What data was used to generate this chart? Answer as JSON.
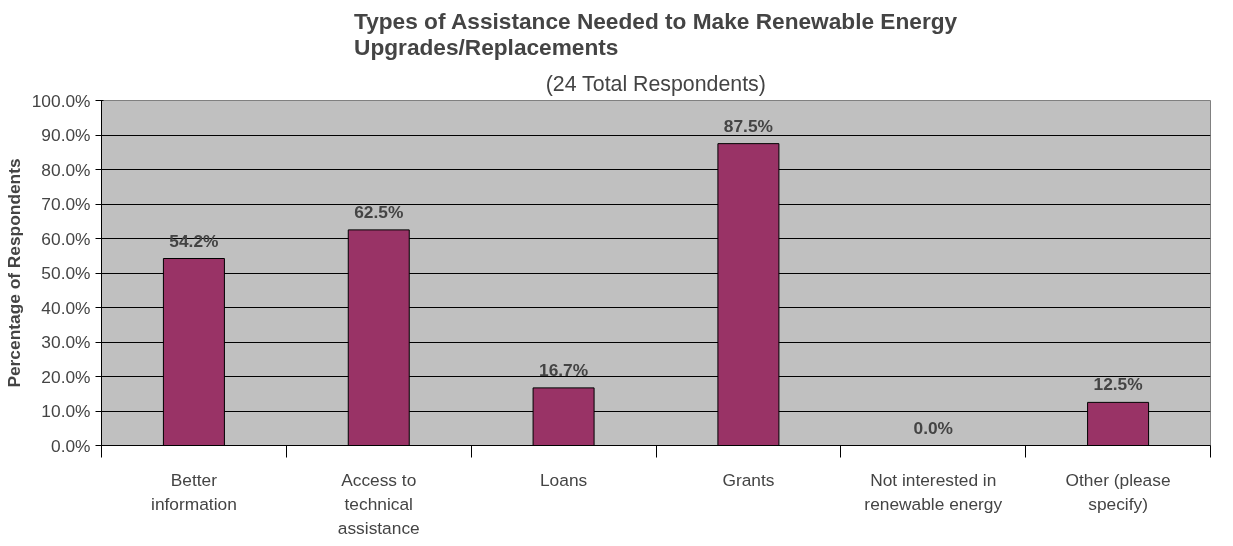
{
  "chart_data": {
    "type": "bar",
    "title": "Types of Assistance Needed to Make Renewable Energy Upgrades/Replacements",
    "subtitle": "(24 Total Respondents)",
    "ylabel": "Percentage of Respondents",
    "categories": [
      "Better information",
      "Access to technical assistance",
      "Loans",
      "Grants",
      "Not interested in renewable energy",
      "Other (please specify)"
    ],
    "values": [
      54.2,
      62.5,
      16.7,
      87.5,
      0.0,
      12.5
    ],
    "value_labels": [
      "54.2%",
      "62.5%",
      "16.7%",
      "87.5%",
      "0.0%",
      "12.5%"
    ],
    "color": "#993366",
    "ylim": [
      0,
      100
    ],
    "yticks": [
      {
        "value": 0,
        "label": "0.0%"
      },
      {
        "value": 10,
        "label": "10.0%"
      },
      {
        "value": 20,
        "label": "20.0%"
      },
      {
        "value": 30,
        "label": "30.0%"
      },
      {
        "value": 40,
        "label": "40.0%"
      },
      {
        "value": 50,
        "label": "50.0%"
      },
      {
        "value": 60,
        "label": "60.0%"
      },
      {
        "value": 70,
        "label": "70.0%"
      },
      {
        "value": 80,
        "label": "80.0%"
      },
      {
        "value": 90,
        "label": "90.0%"
      },
      {
        "value": 100,
        "label": "100.0%"
      }
    ],
    "grid": "y"
  }
}
